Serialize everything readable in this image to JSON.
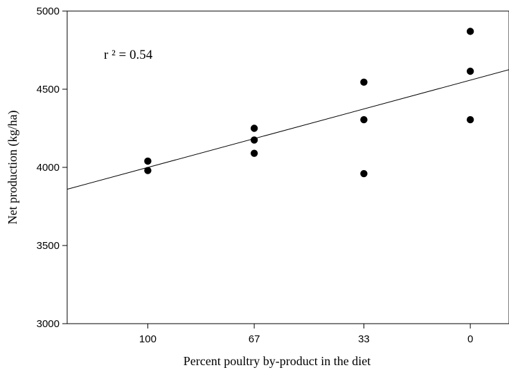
{
  "chart_data": {
    "type": "scatter",
    "xlabel": "Percent poultry by-product in the diet",
    "ylabel": "Net production (kg/ha)",
    "x_ticks": [
      "100",
      "67",
      "33",
      "0"
    ],
    "y_ticks": [
      "3000",
      "3500",
      "4000",
      "4500",
      "5000"
    ],
    "ylim": [
      3000,
      5000
    ],
    "xlim": [
      125,
      -12
    ],
    "x_axis_reversed": true,
    "grid": false,
    "annotation": "r ² = 0.54",
    "points": [
      {
        "x": 100,
        "y": 4040
      },
      {
        "x": 100,
        "y": 3980
      },
      {
        "x": 67,
        "y": 4250
      },
      {
        "x": 67,
        "y": 4175
      },
      {
        "x": 67,
        "y": 4090
      },
      {
        "x": 33,
        "y": 4545
      },
      {
        "x": 33,
        "y": 4305
      },
      {
        "x": 33,
        "y": 3960
      },
      {
        "x": 0,
        "y": 4870
      },
      {
        "x": 0,
        "y": 4615
      },
      {
        "x": 0,
        "y": 4305
      }
    ],
    "regression_line": [
      {
        "x": 125,
        "y": 3860
      },
      {
        "x": -12,
        "y": 4625
      }
    ]
  }
}
